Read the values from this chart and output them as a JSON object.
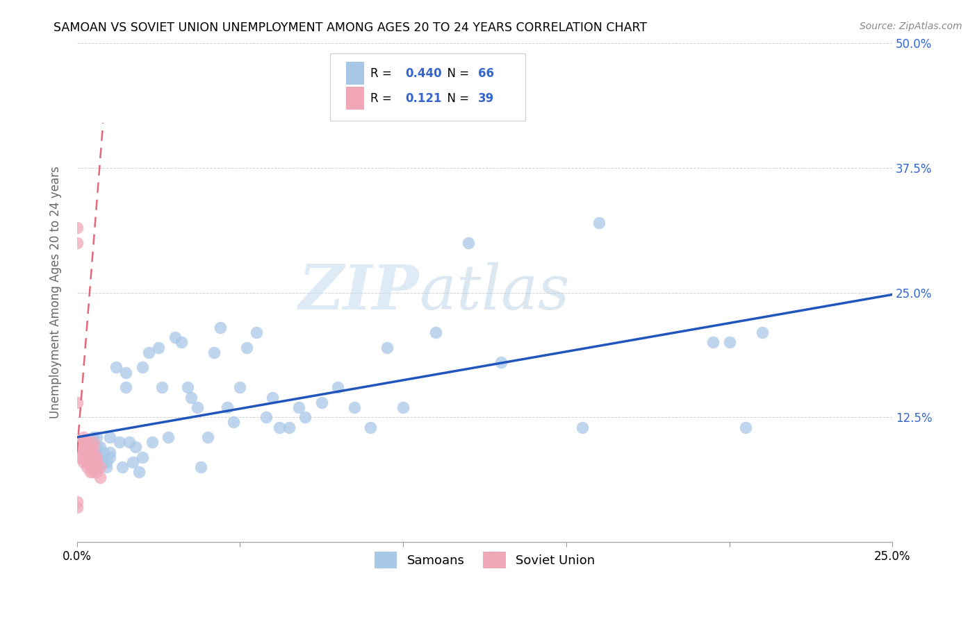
{
  "title": "SAMOAN VS SOVIET UNION UNEMPLOYMENT AMONG AGES 20 TO 24 YEARS CORRELATION CHART",
  "source": "Source: ZipAtlas.com",
  "ylabel": "Unemployment Among Ages 20 to 24 years",
  "xlim": [
    0.0,
    0.25
  ],
  "ylim": [
    0.0,
    0.5
  ],
  "xticks": [
    0.0,
    0.05,
    0.1,
    0.15,
    0.2,
    0.25
  ],
  "yticks": [
    0.0,
    0.125,
    0.25,
    0.375,
    0.5
  ],
  "xticklabels": [
    "0.0%",
    "",
    "",
    "",
    "",
    "25.0%"
  ],
  "yticklabels_right": [
    "",
    "12.5%",
    "25.0%",
    "37.5%",
    "50.0%"
  ],
  "blue_R": "0.440",
  "blue_N": "66",
  "pink_R": "0.121",
  "pink_N": "39",
  "blue_scatter_color": "#a8c8e8",
  "pink_scatter_color": "#f0a8b8",
  "blue_line_color": "#2255bb",
  "pink_line_color": "#e06878",
  "tick_label_color": "#3366cc",
  "legend_blue_label": "Samoans",
  "legend_pink_label": "Soviet Union",
  "watermark_zip": "ZIP",
  "watermark_atlas": "atlas",
  "blue_x": [
    0.003,
    0.004,
    0.005,
    0.005,
    0.006,
    0.006,
    0.007,
    0.007,
    0.008,
    0.008,
    0.009,
    0.009,
    0.01,
    0.01,
    0.01,
    0.012,
    0.013,
    0.014,
    0.015,
    0.015,
    0.016,
    0.017,
    0.018,
    0.019,
    0.02,
    0.02,
    0.022,
    0.023,
    0.025,
    0.026,
    0.028,
    0.03,
    0.032,
    0.034,
    0.035,
    0.037,
    0.038,
    0.04,
    0.042,
    0.044,
    0.046,
    0.048,
    0.05,
    0.052,
    0.055,
    0.058,
    0.06,
    0.062,
    0.065,
    0.068,
    0.07,
    0.075,
    0.08,
    0.085,
    0.09,
    0.095,
    0.1,
    0.11,
    0.12,
    0.13,
    0.155,
    0.16,
    0.195,
    0.2,
    0.205,
    0.21
  ],
  "blue_y": [
    0.1,
    0.085,
    0.09,
    0.105,
    0.095,
    0.105,
    0.085,
    0.095,
    0.08,
    0.09,
    0.08,
    0.075,
    0.09,
    0.085,
    0.105,
    0.175,
    0.1,
    0.075,
    0.155,
    0.17,
    0.1,
    0.08,
    0.095,
    0.07,
    0.175,
    0.085,
    0.19,
    0.1,
    0.195,
    0.155,
    0.105,
    0.205,
    0.2,
    0.155,
    0.145,
    0.135,
    0.075,
    0.105,
    0.19,
    0.215,
    0.135,
    0.12,
    0.155,
    0.195,
    0.21,
    0.125,
    0.145,
    0.115,
    0.115,
    0.135,
    0.125,
    0.14,
    0.155,
    0.135,
    0.115,
    0.195,
    0.135,
    0.21,
    0.3,
    0.18,
    0.115,
    0.32,
    0.2,
    0.2,
    0.115,
    0.21
  ],
  "pink_x": [
    0.0,
    0.0,
    0.0,
    0.0,
    0.0,
    0.001,
    0.001,
    0.001,
    0.001,
    0.001,
    0.002,
    0.002,
    0.002,
    0.002,
    0.002,
    0.002,
    0.003,
    0.003,
    0.003,
    0.003,
    0.003,
    0.003,
    0.004,
    0.004,
    0.004,
    0.004,
    0.004,
    0.005,
    0.005,
    0.005,
    0.005,
    0.005,
    0.005,
    0.006,
    0.006,
    0.006,
    0.006,
    0.007,
    0.007
  ],
  "pink_y": [
    0.035,
    0.04,
    0.14,
    0.3,
    0.315,
    0.09,
    0.095,
    0.1,
    0.085,
    0.095,
    0.08,
    0.085,
    0.09,
    0.095,
    0.1,
    0.105,
    0.075,
    0.08,
    0.085,
    0.09,
    0.095,
    0.1,
    0.07,
    0.075,
    0.08,
    0.085,
    0.09,
    0.07,
    0.075,
    0.085,
    0.09,
    0.095,
    0.1,
    0.07,
    0.075,
    0.08,
    0.085,
    0.065,
    0.075
  ],
  "blue_line_x0": 0.0,
  "blue_line_y0": 0.105,
  "blue_line_x1": 0.25,
  "blue_line_y1": 0.248,
  "pink_line_x0": 0.0,
  "pink_line_y0": 0.09,
  "pink_line_x1": 0.008,
  "pink_line_y1": 0.42
}
